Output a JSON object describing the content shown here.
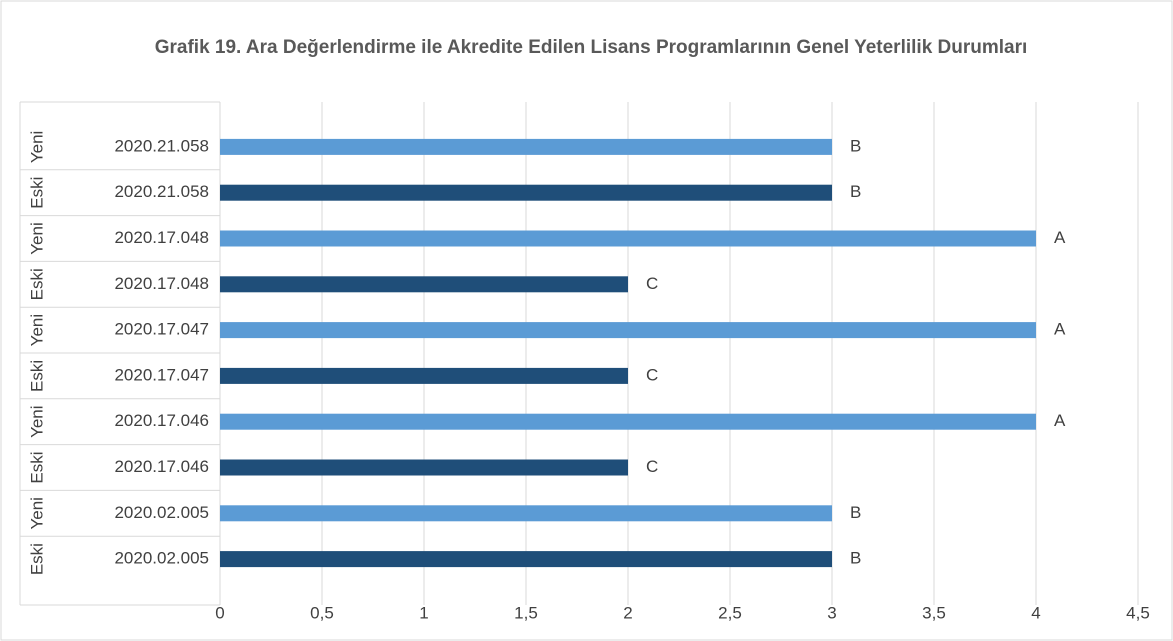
{
  "chart_data": {
    "type": "bar",
    "orientation": "horizontal",
    "title": "Grafik 19. Ara Değerlendirme ile Akredite Edilen Lisans Programlarının Genel Yeterlilik Durumları",
    "categories": [
      "2020.02.005",
      "2020.02.005",
      "2020.17.046",
      "2020.17.046",
      "2020.17.047",
      "2020.17.047",
      "2020.17.048",
      "2020.17.048",
      "2020.21.058",
      "2020.21.058"
    ],
    "groups": [
      "Eski",
      "Yeni",
      "Eski",
      "Yeni",
      "Eski",
      "Yeni",
      "Eski",
      "Yeni",
      "Eski",
      "Yeni"
    ],
    "values": [
      3,
      3,
      2,
      4,
      2,
      4,
      2,
      4,
      3,
      3
    ],
    "value_labels": [
      "B",
      "B",
      "C",
      "A",
      "C",
      "A",
      "C",
      "A",
      "B",
      "B"
    ],
    "colors": [
      "#1f4e79",
      "#5b9bd5",
      "#1f4e79",
      "#5b9bd5",
      "#1f4e79",
      "#5b9bd5",
      "#1f4e79",
      "#5b9bd5",
      "#1f4e79",
      "#5b9bd5"
    ],
    "xlim": [
      0,
      4.5
    ],
    "xticks": [
      0,
      {
        "value": 0.5,
        "label": "0,5"
      },
      1,
      {
        "value": 1.5,
        "label": "1,5"
      },
      2,
      {
        "value": 2.5,
        "label": "2,5"
      },
      3,
      {
        "value": 3.5,
        "label": "3,5"
      },
      4,
      {
        "value": 4.5,
        "label": "4,5"
      }
    ],
    "grid": true
  }
}
